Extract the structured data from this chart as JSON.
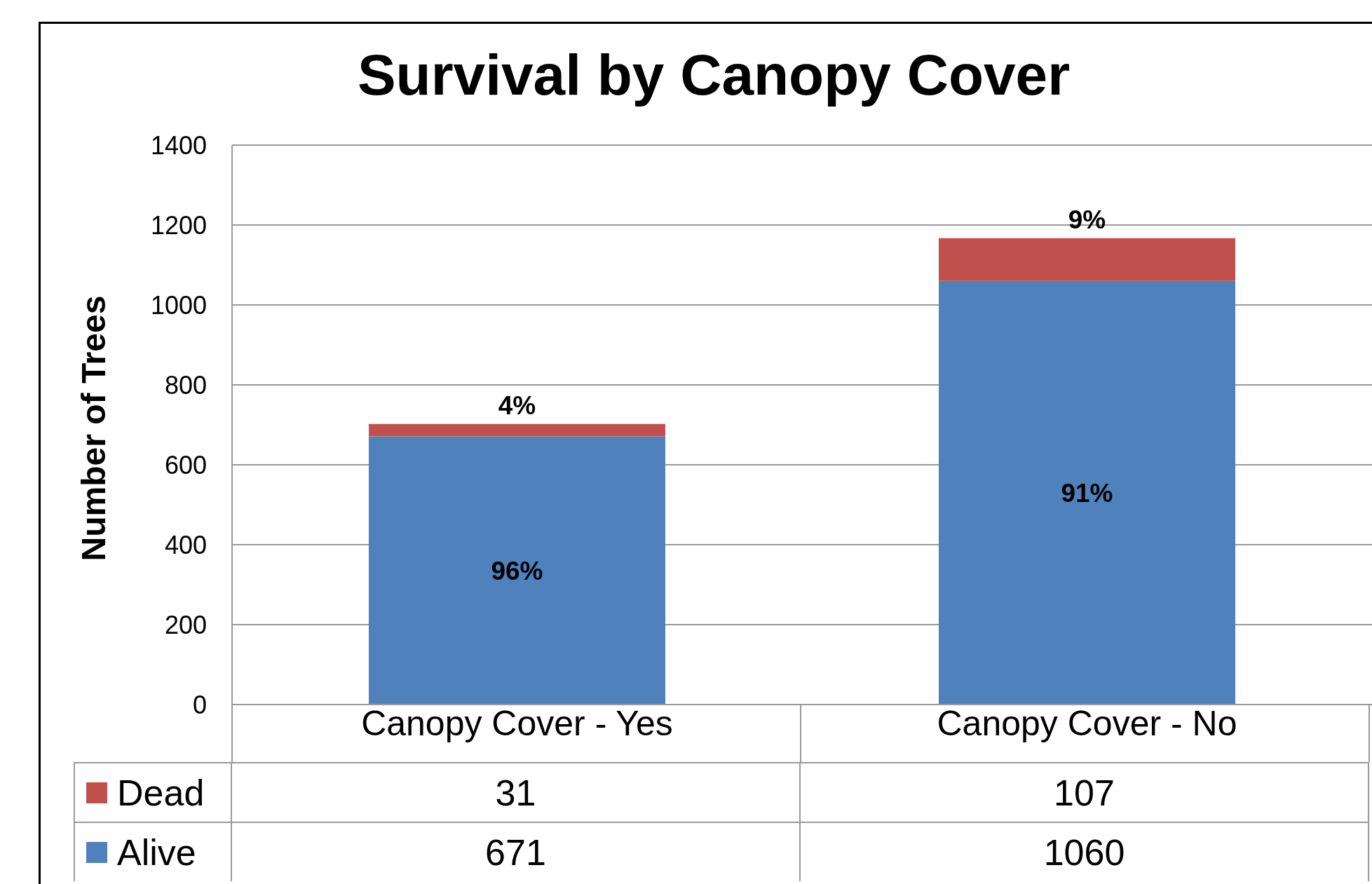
{
  "chart_data": {
    "type": "bar",
    "title": "Survival by Canopy Cover",
    "ylabel": "Number of Trees",
    "categories": [
      "Canopy Cover - Yes",
      "Canopy Cover - No"
    ],
    "stacked": true,
    "ylim": [
      0,
      1400
    ],
    "yticks": [
      0,
      200,
      400,
      600,
      800,
      1000,
      1200,
      1400
    ],
    "grid": "y",
    "legend": "bottom",
    "data_labels": true,
    "annotations": [
      {
        "text": "4%",
        "x": "Canopy Cover - Yes",
        "y": 702
      },
      {
        "text": "9%",
        "x": "Canopy Cover - No",
        "y": 1167
      },
      "96%",
      "91%"
    ],
    "series": [
      {
        "name": "Alive",
        "color": "#4f81bd",
        "values": [
          671,
          1060
        ]
      },
      {
        "name": "Dead",
        "color": "#c0504d",
        "values": [
          31,
          107
        ]
      }
    ]
  }
}
